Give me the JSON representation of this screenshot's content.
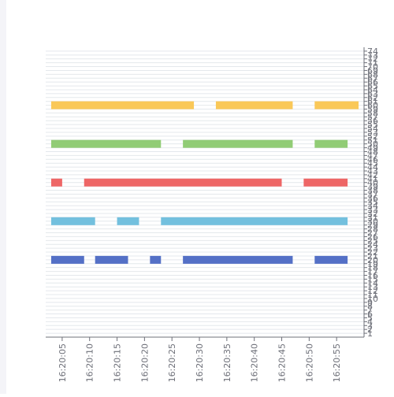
{
  "chart_data": {
    "type": "bar",
    "subtype": "timeline",
    "title": "",
    "xlabel": "",
    "ylabel": "",
    "grid": true,
    "x_ticks": [
      "16:20:05",
      "16:20:10",
      "16:20:15",
      "16:20:20",
      "16:20:25",
      "16:20:30",
      "16:20:35",
      "16:20:40",
      "16:20:45",
      "16:20:50",
      "16:20:55"
    ],
    "y_ticks": [
      "1",
      "2",
      "3",
      "4",
      "5",
      "6",
      "7",
      "8",
      "9",
      "10",
      "11",
      "12",
      "13",
      "14",
      "15",
      "16",
      "17",
      "18",
      "19",
      "20",
      "21",
      "22",
      "23",
      "24",
      "25",
      "26",
      "27",
      "28",
      "29",
      "30",
      "31",
      "32",
      "33",
      "34",
      "35",
      "36",
      "37",
      "38",
      "39",
      "40",
      "41",
      "42",
      "43",
      "44",
      "45",
      "46",
      "47",
      "48",
      "49",
      "50",
      "51",
      "52",
      "53",
      "54",
      "55",
      "56",
      "57",
      "58",
      "59",
      "60",
      "61",
      "62",
      "63",
      "64",
      "65",
      "66",
      "67",
      "68",
      "69",
      "70",
      "71",
      "72",
      "73",
      "74"
    ],
    "xlim": [
      "16:20:02",
      "16:21:00"
    ],
    "ylim": [
      0,
      75
    ],
    "series": [
      {
        "color": "#5470c6",
        "y": 20,
        "segments": [
          [
            "16:20:03",
            "16:20:09"
          ],
          [
            "16:20:11",
            "16:20:17"
          ],
          [
            "16:20:21",
            "16:20:23"
          ],
          [
            "16:20:27",
            "16:20:47"
          ],
          [
            "16:20:51",
            "16:20:57"
          ]
        ]
      },
      {
        "color": "#73c0de",
        "y": 30,
        "segments": [
          [
            "16:20:03",
            "16:20:11"
          ],
          [
            "16:20:15",
            "16:20:19"
          ],
          [
            "16:20:23",
            "16:20:57"
          ]
        ]
      },
      {
        "color": "#ee6666",
        "y": 40,
        "segments": [
          [
            "16:20:03",
            "16:20:05"
          ],
          [
            "16:20:09",
            "16:20:45"
          ],
          [
            "16:20:49",
            "16:20:57"
          ]
        ]
      },
      {
        "color": "#91cc75",
        "y": 50,
        "segments": [
          [
            "16:20:03",
            "16:20:23"
          ],
          [
            "16:20:27",
            "16:20:47"
          ],
          [
            "16:20:51",
            "16:20:57"
          ]
        ]
      },
      {
        "color": "#fac858",
        "y": 60,
        "segments": [
          [
            "16:20:03",
            "16:20:29"
          ],
          [
            "16:20:33",
            "16:20:47"
          ],
          [
            "16:20:51",
            "16:20:59"
          ]
        ]
      }
    ]
  }
}
